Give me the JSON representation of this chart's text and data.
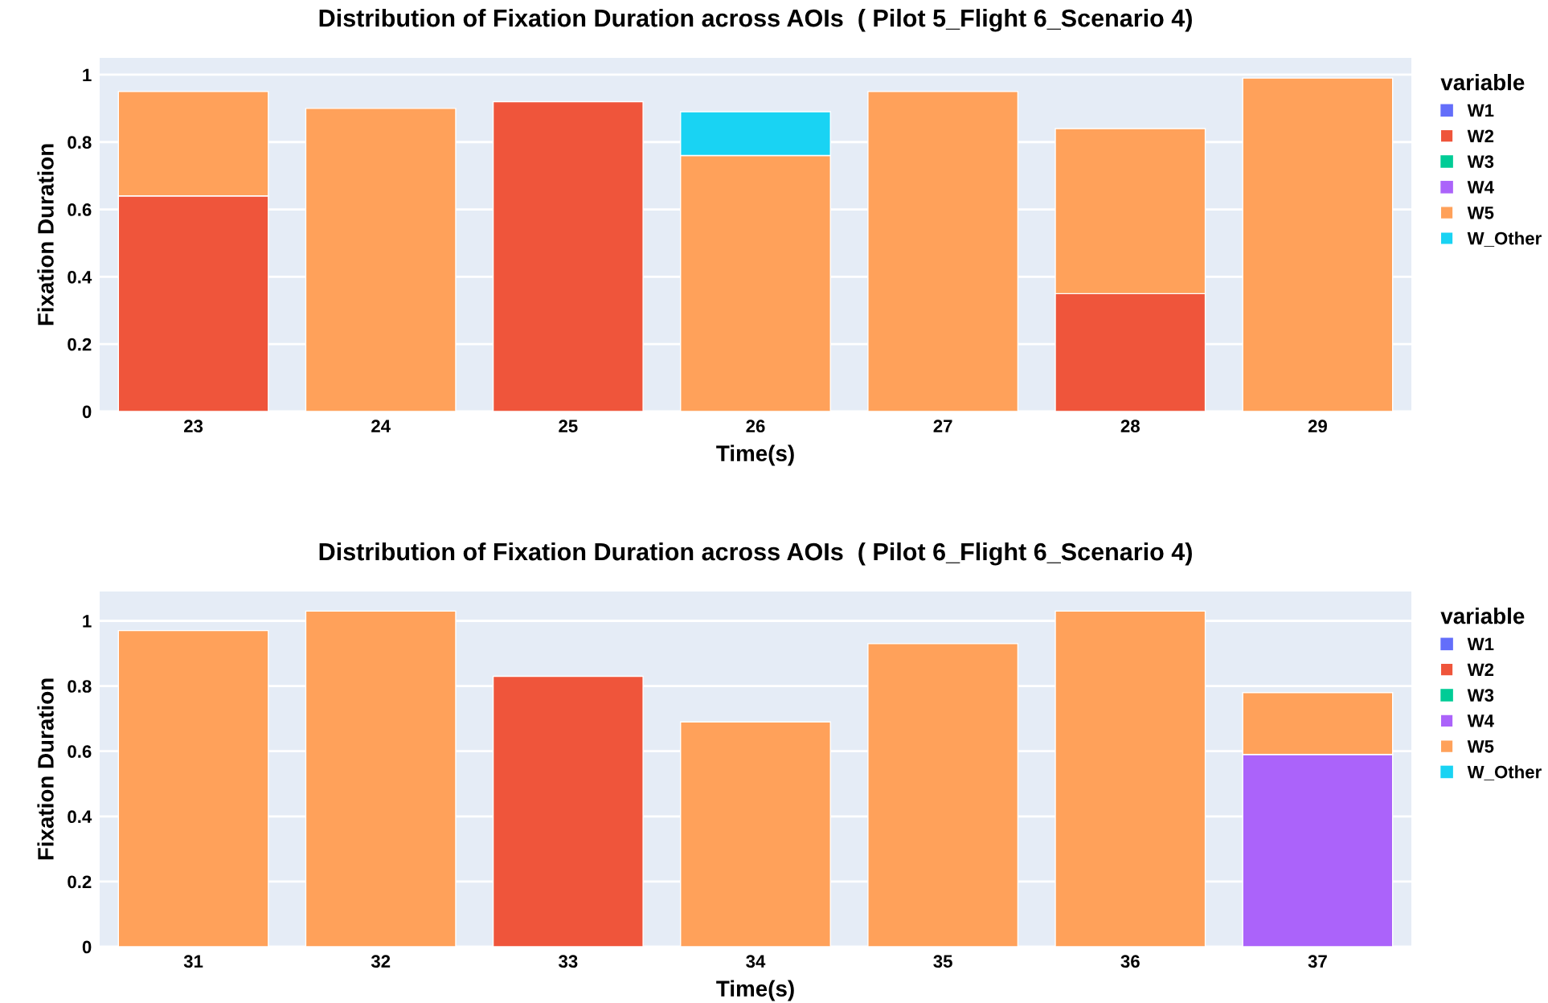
{
  "chart_data": [
    {
      "type": "bar",
      "stacked": true,
      "title": "Distribution of Fixation Duration across AOIs  ( Pilot 5_Flight 6_Scenario 4)",
      "xlabel": "Time(s)",
      "ylabel": "Fixation Duration",
      "legend_title": "variable",
      "legend": "right",
      "grid": "y",
      "categories": [
        "23",
        "24",
        "25",
        "26",
        "27",
        "28",
        "29"
      ],
      "ylim": [
        0,
        1.05
      ],
      "yticks": [
        0,
        0.2,
        0.4,
        0.6,
        0.8,
        1
      ],
      "series": [
        {
          "name": "W1",
          "color": "#636efa",
          "values": [
            null,
            null,
            null,
            null,
            null,
            null,
            null
          ]
        },
        {
          "name": "W2",
          "color": "#ef553b",
          "values": [
            0.64,
            null,
            0.92,
            null,
            null,
            0.35,
            null
          ]
        },
        {
          "name": "W3",
          "color": "#00cc96",
          "values": [
            null,
            null,
            null,
            null,
            null,
            null,
            null
          ]
        },
        {
          "name": "W4",
          "color": "#ab63fa",
          "values": [
            null,
            null,
            null,
            null,
            null,
            null,
            null
          ]
        },
        {
          "name": "W5",
          "color": "#ffa15a",
          "values": [
            0.31,
            0.9,
            null,
            0.76,
            0.95,
            0.49,
            0.99
          ]
        },
        {
          "name": "W_Other",
          "color": "#19d3f3",
          "values": [
            null,
            null,
            null,
            0.13,
            null,
            null,
            null
          ]
        }
      ]
    },
    {
      "type": "bar",
      "stacked": true,
      "title": "Distribution of Fixation Duration across AOIs  ( Pilot 6_Flight 6_Scenario 4)",
      "xlabel": "Time(s)",
      "ylabel": "Fixation Duration",
      "legend_title": "variable",
      "legend": "right",
      "grid": "y",
      "categories": [
        "31",
        "32",
        "33",
        "34",
        "35",
        "36",
        "37"
      ],
      "ylim": [
        0,
        1.09
      ],
      "yticks": [
        0,
        0.2,
        0.4,
        0.6,
        0.8,
        1
      ],
      "series": [
        {
          "name": "W1",
          "color": "#636efa",
          "values": [
            null,
            null,
            null,
            null,
            null,
            null,
            null
          ]
        },
        {
          "name": "W2",
          "color": "#ef553b",
          "values": [
            null,
            null,
            0.83,
            null,
            null,
            null,
            null
          ]
        },
        {
          "name": "W3",
          "color": "#00cc96",
          "values": [
            null,
            null,
            null,
            null,
            null,
            null,
            null
          ]
        },
        {
          "name": "W4",
          "color": "#ab63fa",
          "values": [
            null,
            null,
            null,
            null,
            null,
            null,
            0.59
          ]
        },
        {
          "name": "W5",
          "color": "#ffa15a",
          "values": [
            0.97,
            1.03,
            null,
            0.69,
            0.93,
            1.03,
            0.19
          ]
        },
        {
          "name": "W_Other",
          "color": "#19d3f3",
          "values": [
            null,
            null,
            null,
            null,
            null,
            null,
            null
          ]
        }
      ]
    }
  ]
}
